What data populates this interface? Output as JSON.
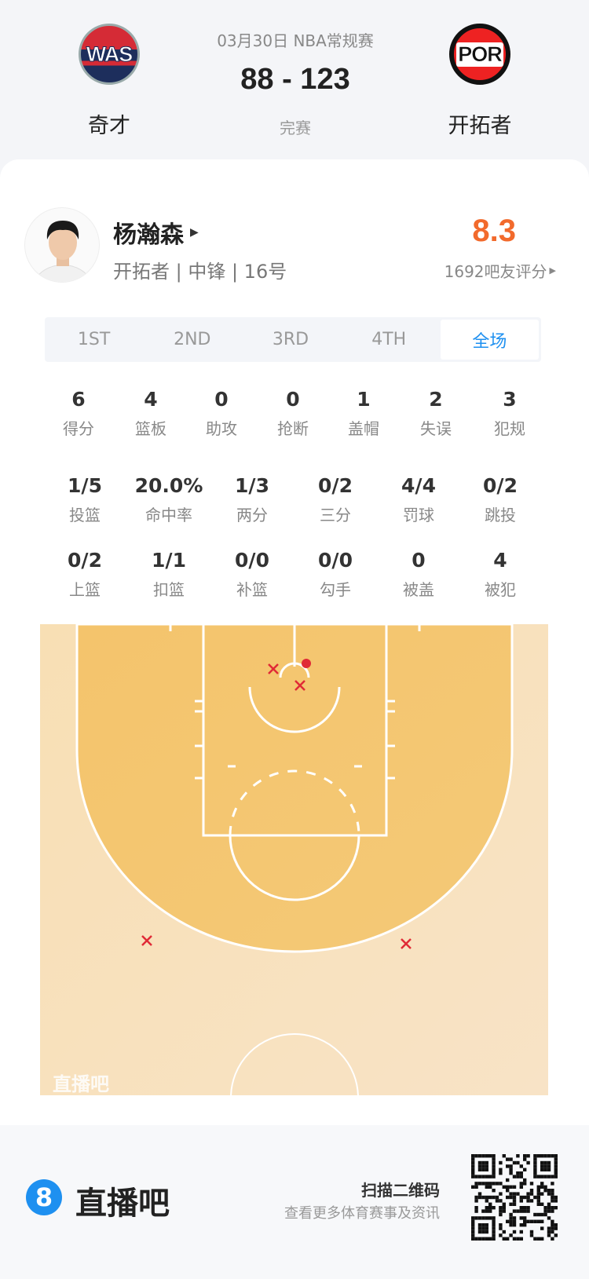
{
  "header": {
    "date_league": "03月30日 NBA常规赛",
    "score": "88 - 123",
    "status": "完赛",
    "home": {
      "abbr": "WAS",
      "name": "奇才"
    },
    "away": {
      "abbr": "POR",
      "name": "开拓者"
    }
  },
  "player": {
    "name": "杨瀚森",
    "info": "开拓者 | 中锋 | 16号",
    "rating": "8.3",
    "rating_count": "1692吧友评分",
    "rating_color": "#f26a2c"
  },
  "tabs": [
    {
      "label": "1ST"
    },
    {
      "label": "2ND"
    },
    {
      "label": "3RD"
    },
    {
      "label": "4TH"
    },
    {
      "label": "全场",
      "active": true
    }
  ],
  "stats_row1": [
    {
      "value": "6",
      "label": "得分"
    },
    {
      "value": "4",
      "label": "篮板"
    },
    {
      "value": "0",
      "label": "助攻"
    },
    {
      "value": "0",
      "label": "抢断"
    },
    {
      "value": "1",
      "label": "盖帽"
    },
    {
      "value": "2",
      "label": "失误"
    },
    {
      "value": "3",
      "label": "犯规"
    }
  ],
  "stats_row2": [
    {
      "value": "1/5",
      "label": "投篮"
    },
    {
      "value": "20.0%",
      "label": "命中率"
    },
    {
      "value": "1/3",
      "label": "两分"
    },
    {
      "value": "0/2",
      "label": "三分"
    },
    {
      "value": "4/4",
      "label": "罚球"
    },
    {
      "value": "0/2",
      "label": "跳投"
    }
  ],
  "stats_row3": [
    {
      "value": "0/2",
      "label": "上篮"
    },
    {
      "value": "1/1",
      "label": "扣篮"
    },
    {
      "value": "0/0",
      "label": "补篮"
    },
    {
      "value": "0/0",
      "label": "勾手"
    },
    {
      "value": "0",
      "label": "被盖"
    },
    {
      "value": "4",
      "label": "被犯"
    }
  ],
  "shot_chart": {
    "watermark": "直播吧",
    "shots": [
      {
        "result": "made"
      },
      {
        "result": "missed"
      },
      {
        "result": "missed"
      },
      {
        "result": "missed"
      },
      {
        "result": "missed"
      }
    ],
    "shot_color": "#e02a36"
  },
  "footer": {
    "brand": "直播吧",
    "brand_icon": "8",
    "scan_title": "扫描二维码",
    "scan_sub": "查看更多体育赛事及资讯"
  }
}
